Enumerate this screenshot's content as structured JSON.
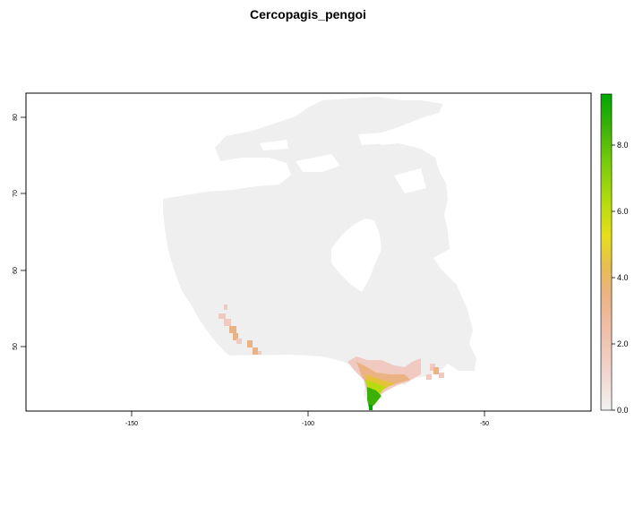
{
  "title": "Cercopagis_pengoi",
  "map": {
    "x_ticks": [
      "-150",
      "-100",
      "-50"
    ],
    "y_ticks": [
      "50",
      "60",
      "70",
      "80"
    ],
    "background_color": "#efefef",
    "xlim": [
      -180,
      -25
    ],
    "ylim": [
      41.5,
      84
    ]
  },
  "legend": {
    "ticks": [
      "0.0",
      "2.0",
      "4.0",
      "6.0",
      "8.0"
    ],
    "colors": [
      "#f2f2f2",
      "#f0c9c0",
      "#ebb383",
      "#e5c23a",
      "#e6e221",
      "#b8dc10",
      "#7acc0c",
      "#3bb107",
      "#00a600"
    ],
    "range": [
      0,
      9.5
    ]
  }
}
